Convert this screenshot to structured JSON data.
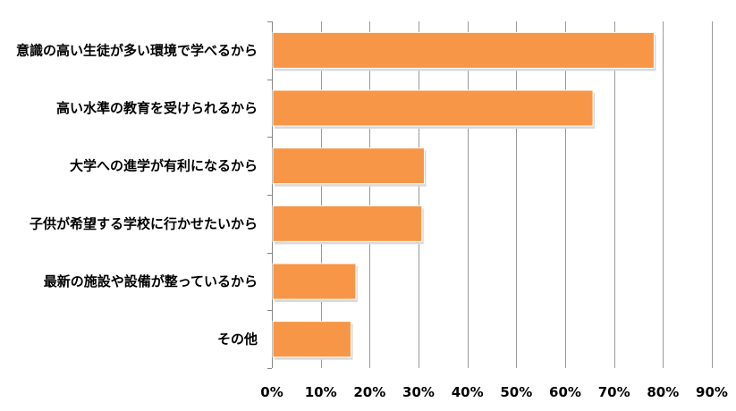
{
  "chart_data": {
    "type": "bar",
    "orientation": "horizontal",
    "categories": [
      "意識の高い生徒が多い環境で学べるから",
      "高い水準の教育を受けられるから",
      "大学への進学が有利になるから",
      "子供が希望する学校に行かせたいから",
      "最新の施設や設備が整っているから",
      "その他"
    ],
    "values": [
      78,
      65.5,
      31,
      30.5,
      17,
      16
    ],
    "xlim": [
      0,
      90
    ],
    "tick_values": [
      0,
      10,
      20,
      30,
      40,
      50,
      60,
      70,
      80,
      90
    ],
    "tick_labels": [
      "0%",
      "10%",
      "20%",
      "30%",
      "40%",
      "50%",
      "60%",
      "70%",
      "80%",
      "90%"
    ],
    "title": "",
    "xlabel": "",
    "ylabel": "",
    "grid": true,
    "legend": "none",
    "bar_color": "#F79646",
    "grid_color": "#999999"
  }
}
